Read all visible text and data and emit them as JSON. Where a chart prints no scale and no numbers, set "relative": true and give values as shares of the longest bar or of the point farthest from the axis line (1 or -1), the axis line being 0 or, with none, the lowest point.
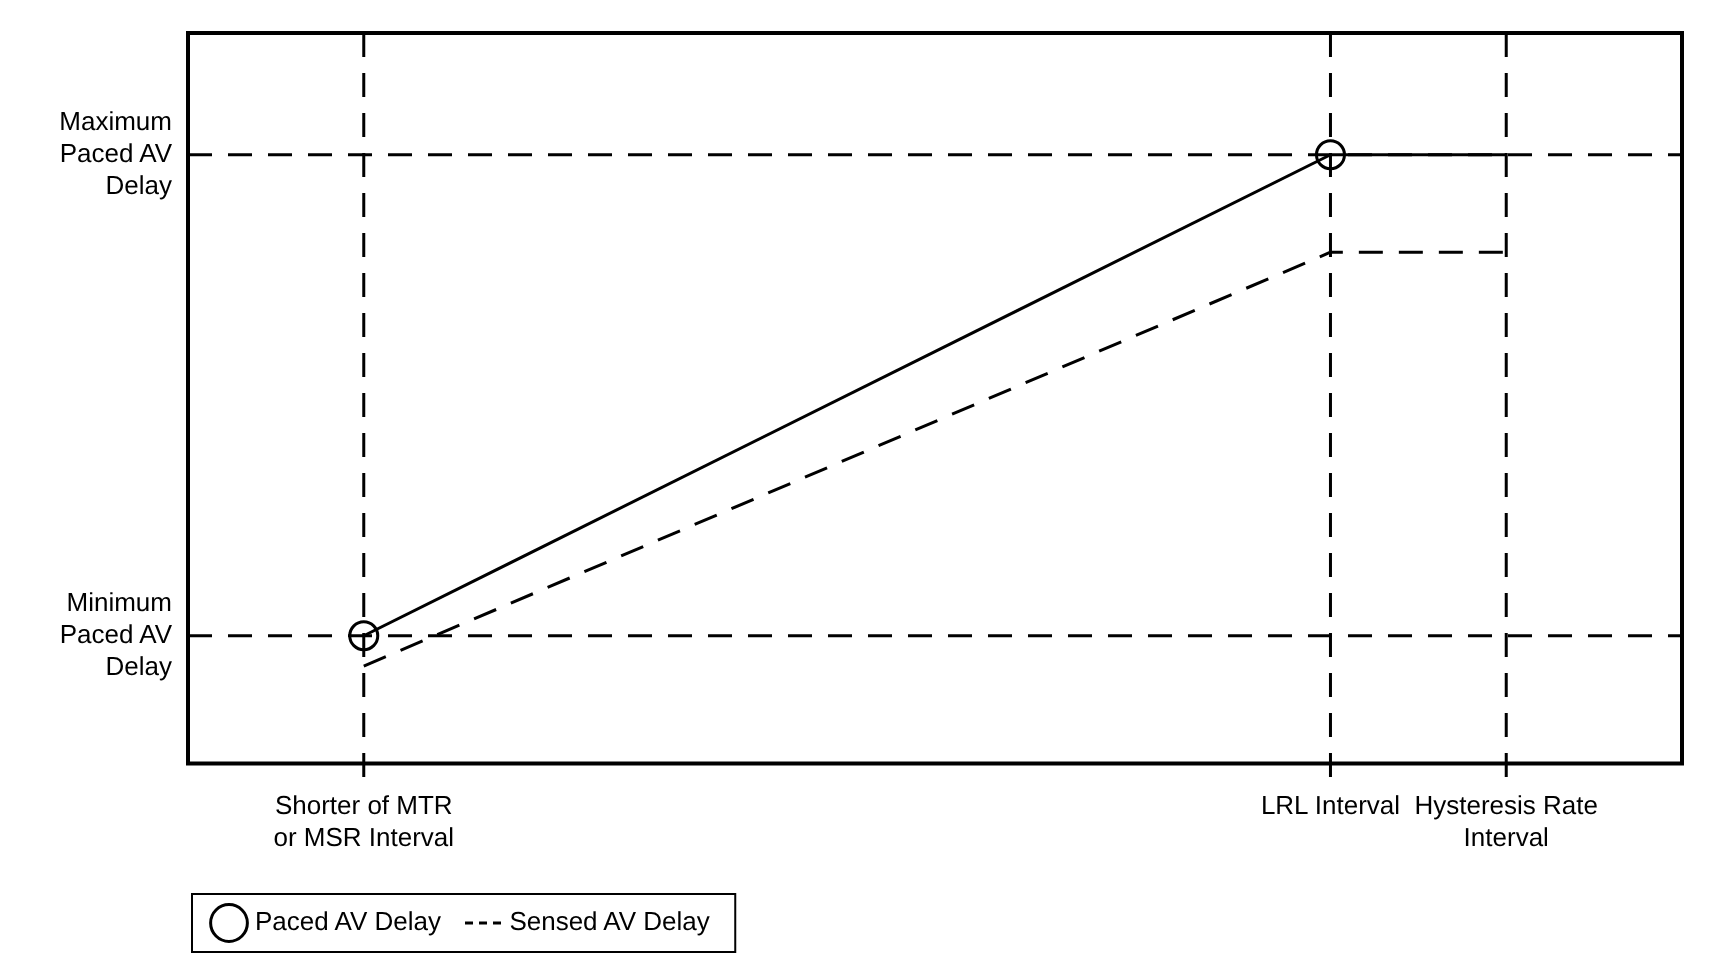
{
  "chart_data": {
    "type": "line",
    "relative": true,
    "categories": [
      null,
      null,
      "Shorter of MTR or MSR Interval",
      null,
      null,
      null,
      null,
      null,
      null,
      null,
      null,
      null,
      null,
      "LRL Interval",
      null,
      "Hysteresis Rate Interval",
      null,
      null
    ],
    "series": [
      {
        "name": "Paced AV Delay",
        "color": "#000000",
        "line_style": "solid",
        "marker": "circle",
        "values": [
          null,
          null,
          0.21,
          null,
          null,
          null,
          null,
          null,
          null,
          null,
          null,
          null,
          null,
          1,
          null,
          null,
          null,
          null
        ]
      },
      {
        "color": "#000000",
        "line_style": "solid",
        "values": [
          null,
          null,
          null,
          null,
          null,
          null,
          null,
          null,
          null,
          null,
          null,
          null,
          null,
          1,
          null,
          1,
          null,
          null
        ]
      },
      {
        "name": "Sensed AV Delay",
        "color": "#000000",
        "line_style": "dashed",
        "marker": "none",
        "values": [
          null,
          null,
          0.16,
          null,
          null,
          null,
          null,
          null,
          null,
          null,
          null,
          null,
          null,
          0.84,
          null,
          0.84,
          null,
          null
        ]
      }
    ],
    "ref_lines": [
      {
        "axis": "y",
        "value": 1,
        "label": "Maximum Paced AV Delay",
        "line_style": "dashed",
        "color": "#000000"
      },
      {
        "axis": "y",
        "value": 0.21,
        "label": "Minimum Paced AV Delay",
        "line_style": "dashed",
        "color": "#000000"
      },
      {
        "axis": "x",
        "value": "Shorter of MTR or MSR Interval",
        "line_style": "dashed",
        "color": "#000000"
      },
      {
        "axis": "x",
        "value": "LRL Interval",
        "line_style": "dashed",
        "color": "#000000"
      },
      {
        "axis": "x",
        "value": "Hysteresis Rate Interval",
        "line_style": "dashed",
        "color": "#000000"
      }
    ],
    "grid": false,
    "legend": "bottom left"
  }
}
